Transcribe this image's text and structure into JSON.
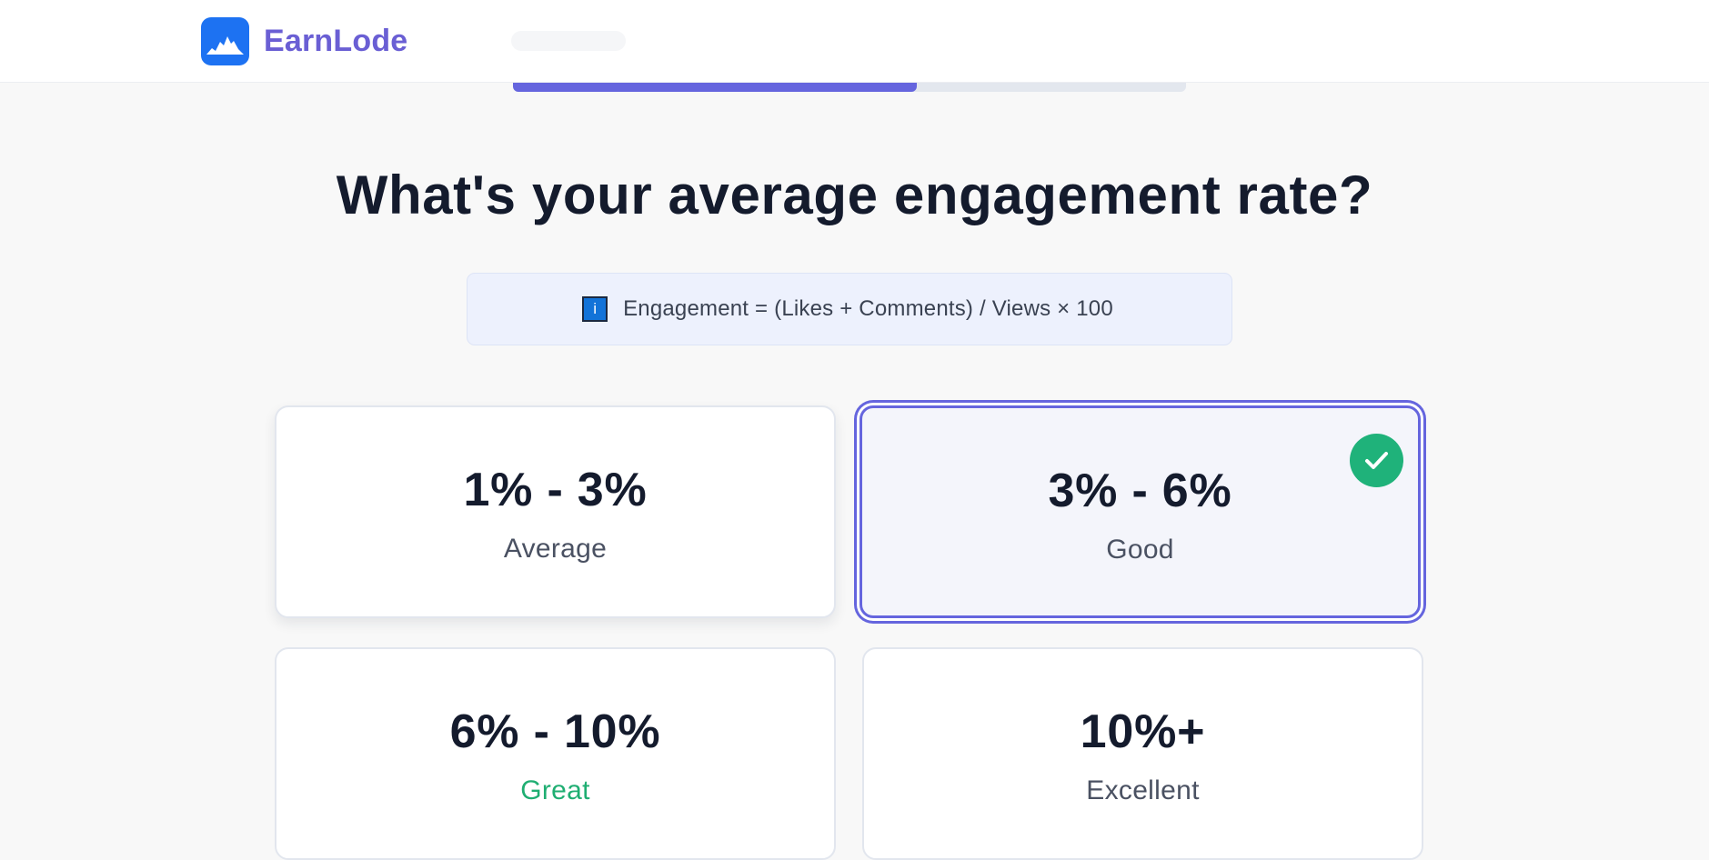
{
  "header": {
    "brand": "EarnLode",
    "logo_icon": "mountain-logo-icon",
    "logo_color": "#1d72f2",
    "brand_color": "#6a5fd4"
  },
  "progress": {
    "fraction": 0.6,
    "accent": "#6565de"
  },
  "question": {
    "title": "What's your average engagement rate?"
  },
  "info": {
    "icon": "info-icon",
    "icon_glyph": "i",
    "text": "Engagement = (Likes + Comments) / Views × 100"
  },
  "options": [
    {
      "value": "1% - 3%",
      "label": "Average",
      "selected": false
    },
    {
      "value": "3% - 6%",
      "label": "Good",
      "selected": true
    },
    {
      "value": "6% - 10%",
      "label": "Great",
      "selected": false,
      "label_color": "#1fae72"
    },
    {
      "value": "10%+",
      "label": "Excellent",
      "selected": false
    }
  ],
  "selection": {
    "badge_icon": "check-icon",
    "badge_color": "#1fb27a"
  }
}
